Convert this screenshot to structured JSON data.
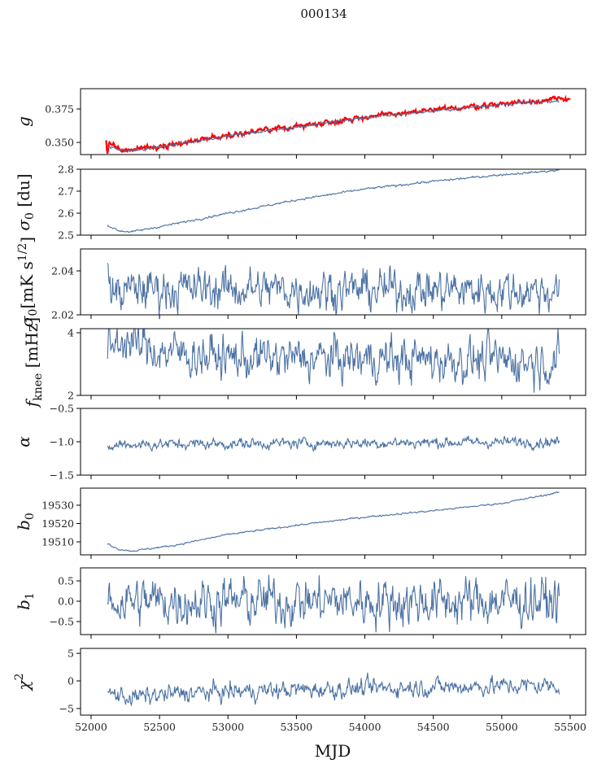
{
  "chart_data": {
    "type": "line",
    "title": "000134",
    "xlabel": "MJD",
    "xlim": [
      51923,
      55613
    ],
    "xticks": [
      52000,
      52500,
      53000,
      53500,
      54000,
      54500,
      55000,
      55500
    ],
    "x_range_data": [
      52120,
      55420
    ],
    "line_color": "#4c72a4",
    "panels": [
      {
        "ylabel": {
          "main": "g",
          "sub": "",
          "tail": "",
          "sup": "",
          "tail2": ""
        },
        "ylim": [
          0.3409,
          0.3902
        ],
        "yticks": [
          "0.350",
          "0.375"
        ],
        "ytick_values": [
          0.35,
          0.375
        ],
        "series": [
          {
            "name": "g model",
            "color": "#ff0000",
            "x_range": [
              52110,
              55500
            ],
            "trend": [
              [
                52110,
                0.352
              ],
              [
                52118,
                0.34
              ],
              [
                52130,
                0.35
              ],
              [
                52250,
                0.3435
              ],
              [
                52500,
                0.347
              ],
              [
                53000,
                0.3555
              ],
              [
                53500,
                0.362
              ],
              [
                54000,
                0.369
              ],
              [
                54500,
                0.374
              ],
              [
                55000,
                0.379
              ],
              [
                55500,
                0.383
              ]
            ],
            "noise": 0.0008
          },
          {
            "name": "g",
            "color": "#4c72a4",
            "x_range": [
              52120,
              55420
            ],
            "trend": [
              [
                52120,
                0.347
              ],
              [
                52250,
                0.3432
              ],
              [
                52500,
                0.3465
              ],
              [
                53000,
                0.355
              ],
              [
                53500,
                0.3615
              ],
              [
                54000,
                0.3685
              ],
              [
                54500,
                0.3735
              ],
              [
                55000,
                0.3785
              ],
              [
                55420,
                0.381
              ]
            ],
            "noise": 0.0004
          }
        ]
      },
      {
        "ylabel": {
          "main": "σ",
          "sub": "0",
          "tail": " [du]",
          "sup": "",
          "tail2": ""
        },
        "ylim": [
          2.5,
          2.8
        ],
        "yticks": [
          "2.5",
          "2.6",
          "2.7",
          "2.8"
        ],
        "ytick_values": [
          2.5,
          2.6,
          2.7,
          2.8
        ],
        "series": [
          {
            "name": "sigma0 du",
            "color": "#4c72a4",
            "x_range": [
              52120,
              55420
            ],
            "trend": [
              [
                52120,
                2.545
              ],
              [
                52200,
                2.52
              ],
              [
                52300,
                2.515
              ],
              [
                52600,
                2.55
              ],
              [
                53000,
                2.6
              ],
              [
                53500,
                2.66
              ],
              [
                54000,
                2.71
              ],
              [
                54500,
                2.745
              ],
              [
                55000,
                2.775
              ],
              [
                55420,
                2.795
              ]
            ],
            "noise": 0.002
          }
        ]
      },
      {
        "ylabel": {
          "main": "σ",
          "sub": "0",
          "tail": "[mK s",
          "sup": "1/2",
          "tail2": "]"
        },
        "ylim": [
          2.02,
          2.05
        ],
        "yticks": [
          "2.02",
          "2.04"
        ],
        "ytick_values": [
          2.02,
          2.04
        ],
        "series": [
          {
            "name": "sigma0 mK",
            "color": "#4c72a4",
            "x_range": [
              52120,
              55420
            ],
            "trend": [
              [
                52120,
                2.045
              ],
              [
                52150,
                2.03
              ],
              [
                52400,
                2.032
              ],
              [
                55420,
                2.031
              ]
            ],
            "noise": 0.004
          }
        ]
      },
      {
        "ylabel": {
          "main": "f",
          "sub": "knee",
          "tail": " [mHz]",
          "sup": "",
          "tail2": ""
        },
        "ylim": [
          2.0,
          4.13
        ],
        "yticks": [
          "2",
          "4"
        ],
        "ytick_values": [
          2,
          4
        ],
        "series": [
          {
            "name": "fknee",
            "color": "#4c72a4",
            "x_range": [
              52120,
              55420
            ],
            "trend": [
              [
                52120,
                3.4
              ],
              [
                52200,
                3.8
              ],
              [
                52500,
                3.4
              ],
              [
                53000,
                3.2
              ],
              [
                55420,
                3.1
              ]
            ],
            "noise": 0.3
          }
        ]
      },
      {
        "ylabel": {
          "main": "α",
          "sub": "",
          "tail": "",
          "sup": "",
          "tail2": ""
        },
        "ylim": [
          -1.5,
          -0.5
        ],
        "yticks": [
          "−1.5",
          "−1.0",
          "−0.5"
        ],
        "ytick_values": [
          -1.5,
          -1.0,
          -0.5
        ],
        "series": [
          {
            "name": "alpha",
            "color": "#4c72a4",
            "x_range": [
              52120,
              55420
            ],
            "trend": [
              [
                52120,
                -1.12
              ],
              [
                52200,
                -1.04
              ],
              [
                55420,
                -1.0
              ]
            ],
            "noise": 0.035
          }
        ]
      },
      {
        "ylabel": {
          "main": "b",
          "sub": "0",
          "tail": "",
          "sup": "",
          "tail2": ""
        },
        "ylim": [
          19502.9,
          19539.3
        ],
        "yticks": [
          "19510",
          "19520",
          "19530"
        ],
        "ytick_values": [
          19510,
          19520,
          19530
        ],
        "series": [
          {
            "name": "b0",
            "color": "#4c72a4",
            "x_range": [
              52120,
              55420
            ],
            "trend": [
              [
                52120,
                19509
              ],
              [
                52200,
                19506
              ],
              [
                52300,
                19505
              ],
              [
                52600,
                19508
              ],
              [
                53000,
                19514
              ],
              [
                53500,
                19519
              ],
              [
                54000,
                19523.5
              ],
              [
                54500,
                19527
              ],
              [
                55000,
                19531
              ],
              [
                55420,
                19537
              ]
            ],
            "noise": 0.2
          }
        ]
      },
      {
        "ylabel": {
          "main": "b",
          "sub": "1",
          "tail": "",
          "sup": "",
          "tail2": ""
        },
        "ylim": [
          -0.82,
          0.82
        ],
        "yticks": [
          "−0.5",
          "0.0",
          "0.5"
        ],
        "ytick_values": [
          -0.5,
          0,
          0.5
        ],
        "series": [
          {
            "name": "b1",
            "color": "#4c72a4",
            "x_range": [
              52120,
              55420
            ],
            "trend": [
              [
                52120,
                0.0
              ],
              [
                55420,
                0.0
              ]
            ],
            "noise": 0.25
          }
        ]
      },
      {
        "ylabel": {
          "main": "χ",
          "sub": "",
          "tail": "",
          "sup": "2",
          "tail2": ""
        },
        "ylim": [
          -6.2,
          5.9
        ],
        "yticks": [
          "−5",
          "0",
          "5"
        ],
        "ytick_values": [
          -5,
          0,
          5
        ],
        "series": [
          {
            "name": "chi2",
            "color": "#4c72a4",
            "x_range": [
              52120,
              55420
            ],
            "trend": [
              [
                52120,
                -2.2
              ],
              [
                52300,
                -3.0
              ],
              [
                52700,
                -2.2
              ],
              [
                53500,
                -1.6
              ],
              [
                54500,
                -1.1
              ],
              [
                55420,
                -0.8
              ]
            ],
            "noise": 0.7
          }
        ]
      }
    ]
  }
}
